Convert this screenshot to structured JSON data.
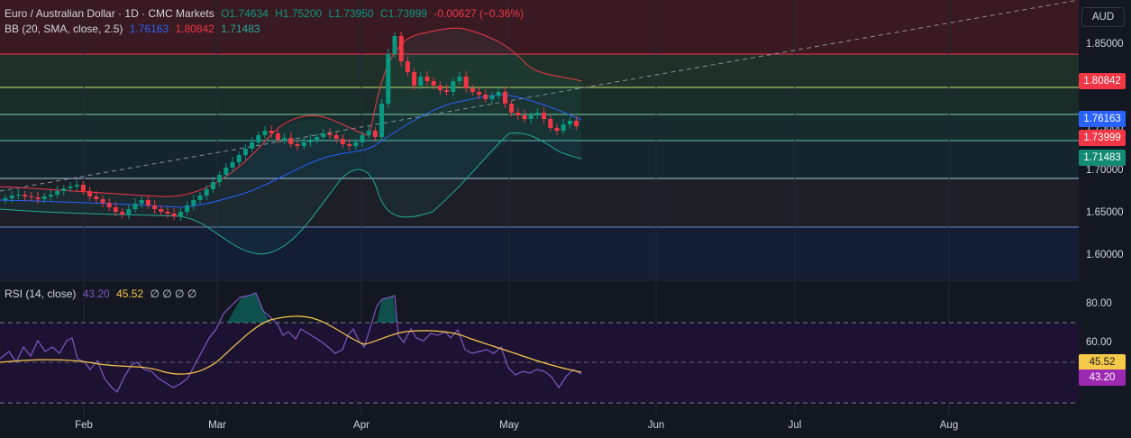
{
  "header": {
    "symbol": "Euro / Australian Dollar · 1D · CMC Markets",
    "open": "O1.74634",
    "high": "H1.75200",
    "low": "L1.73950",
    "close": "C1.73999",
    "change": "-0.00627 (−0.36%)",
    "bb_title": "BB (20, SMA, close, 2.5)",
    "bb_basis": "1.76163",
    "bb_upper": "1.80842",
    "bb_lower": "1.71483"
  },
  "rsi_header": {
    "title": "RSI (14, close)",
    "rsi": "43.20",
    "ma": "45.52",
    "extras": "∅ ∅ ∅ ∅"
  },
  "currency_button": "AUD",
  "price_axis": [
    "1.85000",
    "1.80000",
    "1.75000",
    "1.70000",
    "1.65000",
    "1.60000"
  ],
  "rsi_axis": [
    "80.00",
    "60.00",
    "40.00"
  ],
  "time_axis": [
    "Feb",
    "Mar",
    "Apr",
    "May",
    "Jun",
    "Jul",
    "Aug"
  ],
  "badges": {
    "upper": "1.80842",
    "basis": "1.76163",
    "price": "1.73999",
    "lower": "1.71483",
    "rsi_ma": "45.52",
    "rsi": "43.20"
  },
  "colors": {
    "up": "#089981",
    "down": "#f23645",
    "basis": "#2962ff",
    "upper": "#f23645",
    "lower": "#22ab94",
    "rsi": "#7e57c2",
    "rsi_ma": "#f7c948"
  },
  "chart_data": {
    "type": "candlestick",
    "ylim": [
      1.57,
      1.88
    ],
    "series_close": [
      1.66,
      1.663,
      1.664,
      1.662,
      1.661,
      1.659,
      1.662,
      1.664,
      1.668,
      1.671,
      1.673,
      1.675,
      1.668,
      1.662,
      1.659,
      1.655,
      1.65,
      1.645,
      1.642,
      1.648,
      1.654,
      1.658,
      1.652,
      1.648,
      1.645,
      1.643,
      1.64,
      1.645,
      1.652,
      1.658,
      1.663,
      1.67,
      1.678,
      1.686,
      1.694,
      1.7,
      1.708,
      1.715,
      1.722,
      1.73,
      1.735,
      1.732,
      1.725,
      1.727,
      1.72,
      1.718,
      1.722,
      1.725,
      1.728,
      1.732,
      1.73,
      1.726,
      1.72,
      1.718,
      1.722,
      1.73,
      1.735,
      1.728,
      1.765,
      1.82,
      1.84,
      1.812,
      1.8,
      1.785,
      1.795,
      1.79,
      1.785,
      1.78,
      1.778,
      1.79,
      1.795,
      1.782,
      1.778,
      1.775,
      1.77,
      1.774,
      1.778,
      1.765,
      1.755,
      1.752,
      1.748,
      1.752,
      1.755,
      1.748,
      1.738,
      1.735,
      1.742,
      1.746,
      1.74
    ]
  }
}
